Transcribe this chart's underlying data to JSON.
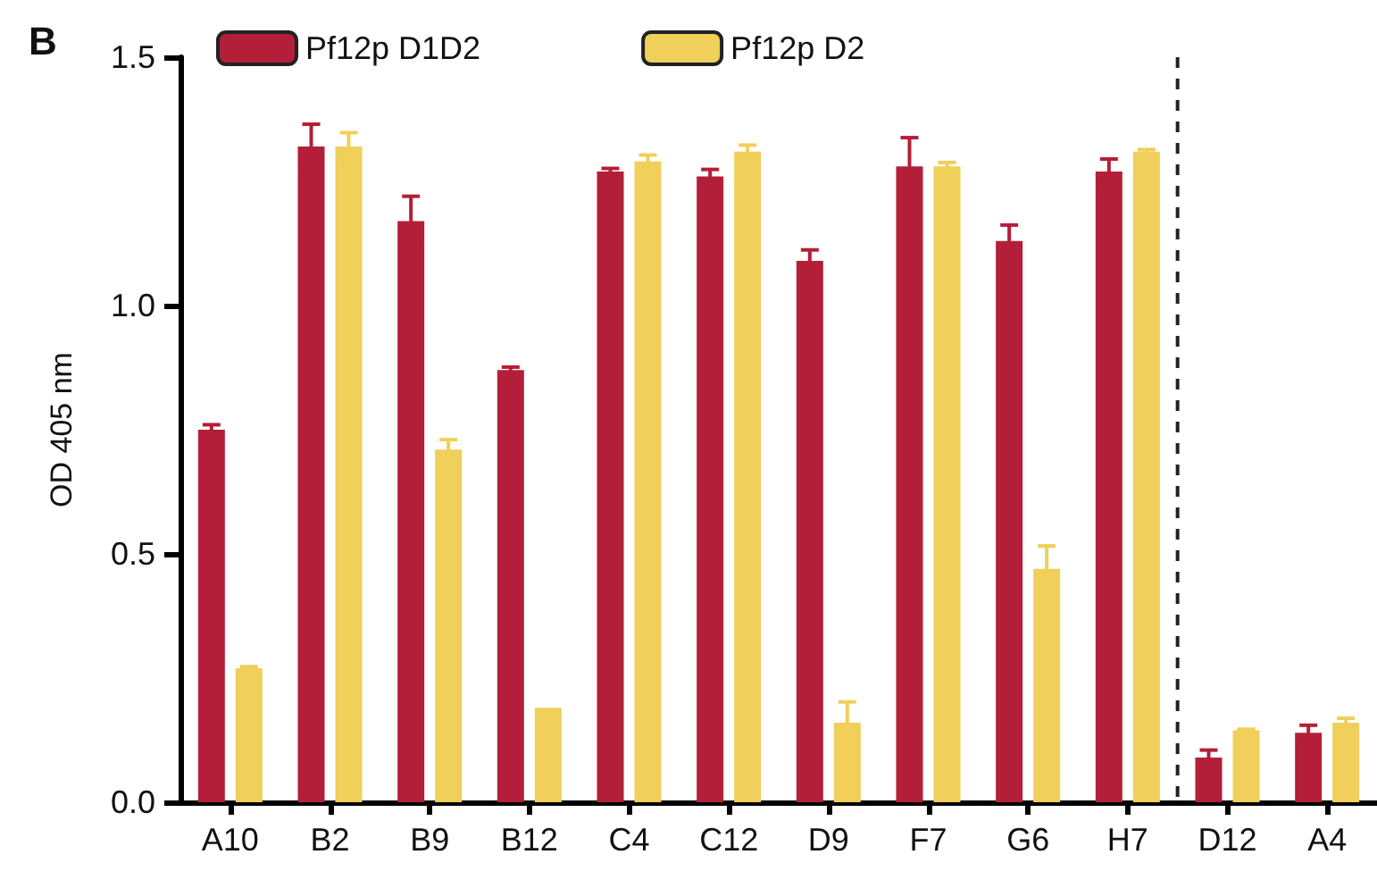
{
  "chart_data": {
    "type": "bar",
    "ylabel": "OD 405 nm",
    "annotations": [
      "B"
    ],
    "categories": [
      "A10",
      "B2",
      "B9",
      "B12",
      "C4",
      "C12",
      "D9",
      "F7",
      "G6",
      "H7",
      "D12",
      "A4"
    ],
    "series": [
      {
        "name": "Pf12p D1D2",
        "color": "#b31f38",
        "values": [
          0.75,
          1.32,
          1.17,
          0.87,
          1.27,
          1.26,
          1.09,
          1.28,
          1.13,
          1.27,
          0.09,
          0.14
        ],
        "errors": [
          0.01,
          0.045,
          0.05,
          0.006,
          0.006,
          0.014,
          0.022,
          0.058,
          0.032,
          0.025,
          0.015,
          0.015
        ]
      },
      {
        "name": "Pf12p D2",
        "color": "#f0cf5a",
        "values": [
          0.27,
          1.32,
          0.71,
          0.19,
          1.29,
          1.31,
          0.16,
          1.28,
          0.47,
          1.31,
          0.145,
          0.16
        ],
        "errors": [
          0.003,
          0.028,
          0.02,
          null,
          0.013,
          0.013,
          0.042,
          0.008,
          0.046,
          0.004,
          0.002,
          0.009
        ]
      }
    ],
    "ylim": [
      0,
      1.5
    ],
    "yticks": [
      {
        "value": 0,
        "label": "0.0"
      },
      0.5,
      {
        "value": 1,
        "label": "1.0"
      },
      1.5
    ],
    "legend": "top left",
    "grid": false
  }
}
